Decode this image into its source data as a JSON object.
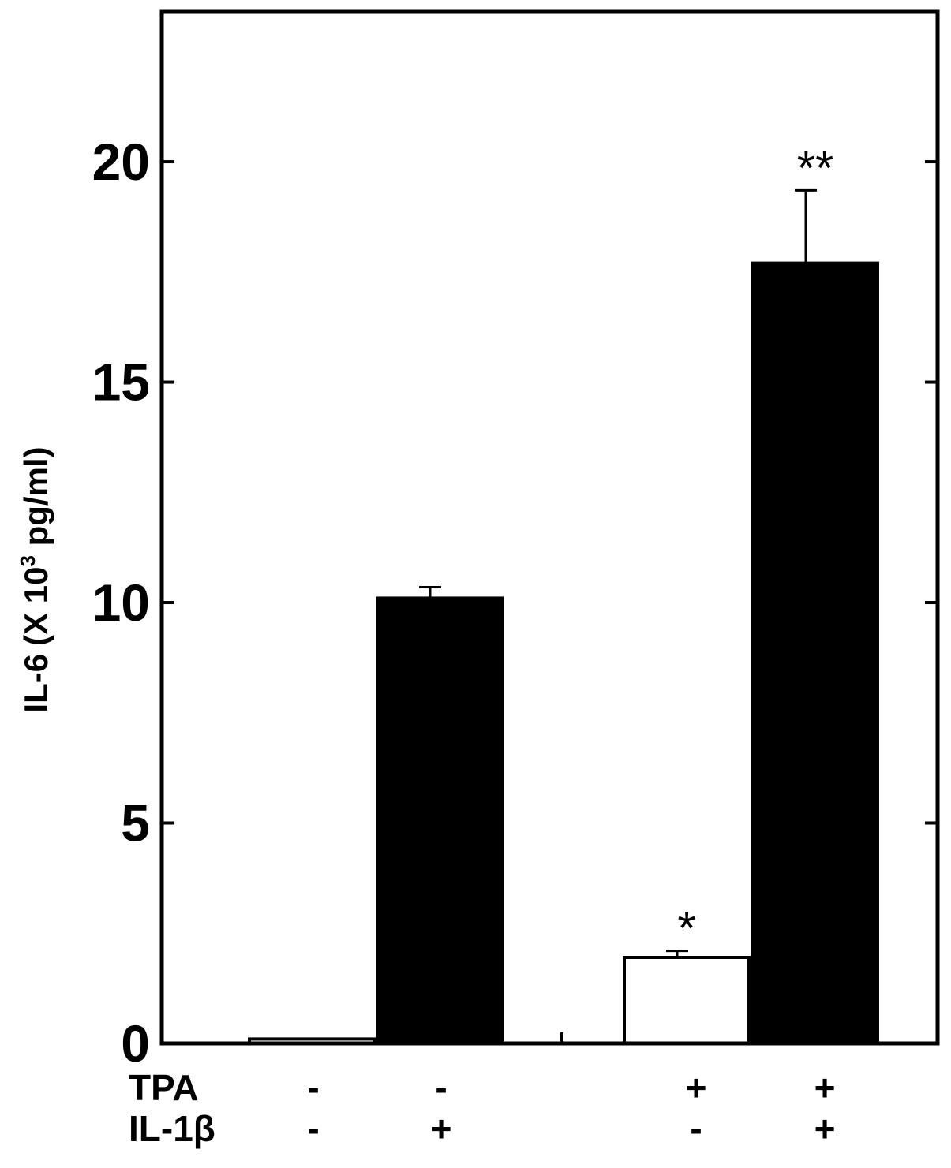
{
  "chart_data": {
    "type": "bar",
    "ylabel_main": "IL-6",
    "ylabel_unit_prefix": "(X 10",
    "ylabel_unit_exp": "3",
    "ylabel_unit_suffix": " pg/ml)",
    "ylim": [
      0,
      23.4
    ],
    "yticks": [
      "0",
      "5",
      "10",
      "15",
      "20"
    ],
    "grid": false,
    "legend": "none",
    "series": [
      {
        "values": [
          0.1,
          10.1,
          1.95,
          17.7
        ],
        "errors": [
          0,
          0.25,
          0.15,
          1.65
        ],
        "fills": [
          "#ffffff",
          "#000000",
          "#ffffff",
          "#000000"
        ],
        "significance": [
          "",
          "",
          "*",
          "**"
        ]
      }
    ],
    "conditions": [
      {
        "label": "TPA",
        "signs": [
          "-",
          "-",
          "+",
          "+"
        ]
      },
      {
        "label": "IL-1β",
        "signs": [
          "-",
          "+",
          "-",
          "+"
        ]
      }
    ]
  }
}
